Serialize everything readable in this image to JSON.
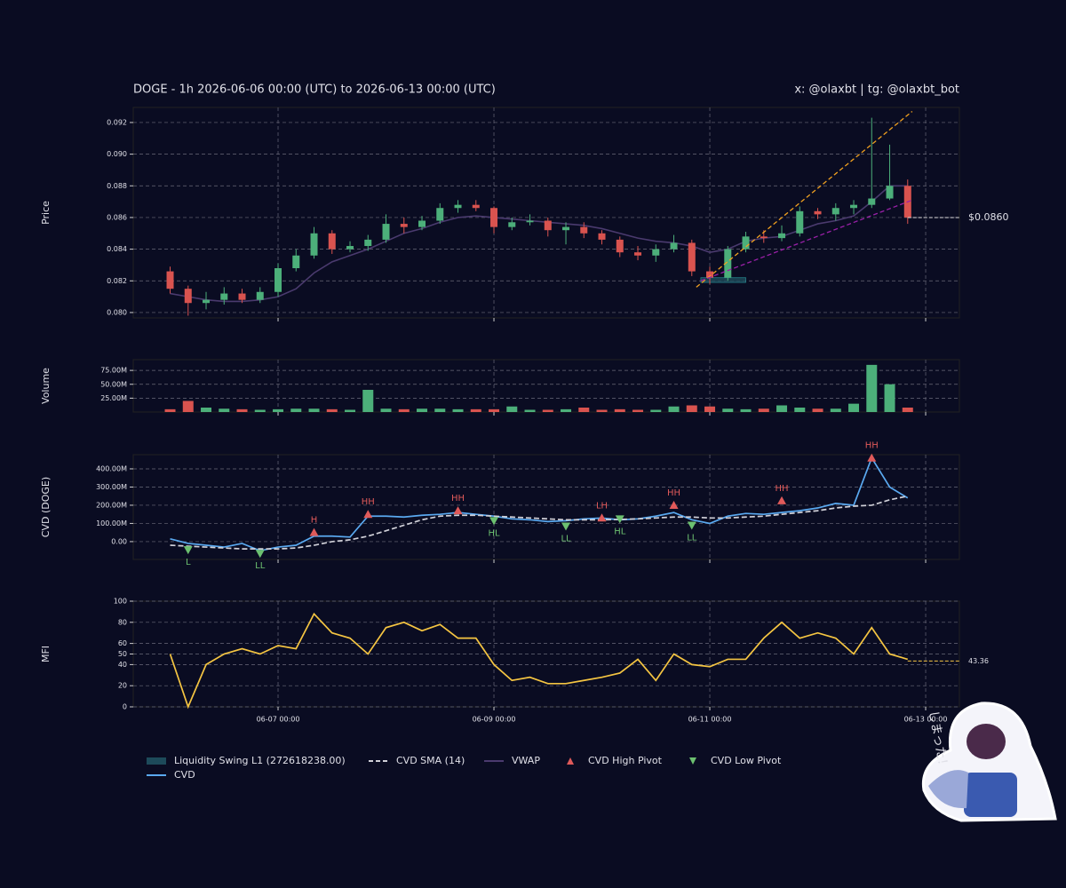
{
  "header": {
    "title": "DOGE - 1h 2026-06-06 00:00 (UTC) to 2026-06-13 00:00 (UTC)",
    "credit": "x: @olaxbt | tg: @olaxbt_bot",
    "sticker_text": "しまった！"
  },
  "chart_data": [
    {
      "type": "candlestick",
      "ylabel": "Price",
      "xlim": [
        "2026-06-05 15:48",
        "2026-06-13 07:30"
      ],
      "ylim": [
        0.07966,
        0.09295
      ],
      "yticks": [
        {
          "value": 0.08,
          "label": "0.080"
        },
        {
          "value": 0.082,
          "label": "0.082"
        },
        {
          "value": 0.084,
          "label": "0.084"
        },
        {
          "value": 0.086,
          "label": "0.086"
        },
        {
          "value": 0.088,
          "label": "0.088"
        },
        {
          "value": 0.09,
          "label": "0.090"
        },
        {
          "value": 0.092,
          "label": "0.092"
        }
      ],
      "up_color": "#4caf7a",
      "down_color": "#d9534f",
      "x": [
        "2026-06-06 00:00",
        "2026-06-06 04:00",
        "2026-06-06 08:00",
        "2026-06-06 12:00",
        "2026-06-06 16:00",
        "2026-06-06 20:00",
        "2026-06-07 00:00",
        "2026-06-07 04:00",
        "2026-06-07 08:00",
        "2026-06-07 12:00",
        "2026-06-07 16:00",
        "2026-06-07 20:00",
        "2026-06-08 00:00",
        "2026-06-08 04:00",
        "2026-06-08 08:00",
        "2026-06-08 12:00",
        "2026-06-08 16:00",
        "2026-06-08 20:00",
        "2026-06-09 00:00",
        "2026-06-09 04:00",
        "2026-06-09 08:00",
        "2026-06-09 12:00",
        "2026-06-09 16:00",
        "2026-06-09 20:00",
        "2026-06-10 00:00",
        "2026-06-10 04:00",
        "2026-06-10 08:00",
        "2026-06-10 12:00",
        "2026-06-10 16:00",
        "2026-06-10 20:00",
        "2026-06-11 00:00",
        "2026-06-11 04:00",
        "2026-06-11 08:00",
        "2026-06-11 12:00",
        "2026-06-11 16:00",
        "2026-06-11 20:00",
        "2026-06-12 00:00",
        "2026-06-12 04:00",
        "2026-06-12 08:00",
        "2026-06-12 12:00",
        "2026-06-12 16:00",
        "2026-06-12 20:00"
      ],
      "open": [
        0.0826,
        0.0815,
        0.0806,
        0.0808,
        0.0812,
        0.0808,
        0.0813,
        0.0828,
        0.0836,
        0.085,
        0.084,
        0.0842,
        0.0846,
        0.0856,
        0.0854,
        0.0858,
        0.0866,
        0.0868,
        0.0866,
        0.0854,
        0.0857,
        0.0858,
        0.0852,
        0.0854,
        0.085,
        0.0846,
        0.0838,
        0.0836,
        0.084,
        0.0844,
        0.0826,
        0.0822,
        0.084,
        0.0848,
        0.0847,
        0.085,
        0.0864,
        0.0862,
        0.0866,
        0.0868,
        0.0872,
        0.088
      ],
      "high": [
        0.0829,
        0.0817,
        0.0813,
        0.0816,
        0.0815,
        0.0816,
        0.0831,
        0.084,
        0.0854,
        0.0852,
        0.0845,
        0.0849,
        0.0862,
        0.086,
        0.0861,
        0.0869,
        0.0871,
        0.0871,
        0.0867,
        0.086,
        0.0862,
        0.086,
        0.0857,
        0.0857,
        0.0852,
        0.0848,
        0.0842,
        0.0843,
        0.0849,
        0.0846,
        0.0829,
        0.0842,
        0.0851,
        0.0852,
        0.0855,
        0.0867,
        0.0866,
        0.0869,
        0.0871,
        0.0923,
        0.0906,
        0.0884
      ],
      "low": [
        0.0812,
        0.0798,
        0.0802,
        0.0805,
        0.0806,
        0.0806,
        0.081,
        0.0826,
        0.0834,
        0.0837,
        0.0838,
        0.0839,
        0.0844,
        0.085,
        0.0852,
        0.0856,
        0.0863,
        0.0864,
        0.085,
        0.0852,
        0.0855,
        0.0848,
        0.0843,
        0.0847,
        0.0843,
        0.0835,
        0.0833,
        0.0832,
        0.0838,
        0.0823,
        0.0818,
        0.082,
        0.0838,
        0.0844,
        0.0845,
        0.0848,
        0.0859,
        0.0858,
        0.0862,
        0.0866,
        0.0871,
        0.0856
      ],
      "close": [
        0.0815,
        0.0806,
        0.0808,
        0.0812,
        0.0808,
        0.0813,
        0.0828,
        0.0836,
        0.085,
        0.084,
        0.0842,
        0.0846,
        0.0856,
        0.0854,
        0.0858,
        0.0866,
        0.0868,
        0.0866,
        0.0854,
        0.0857,
        0.0858,
        0.0852,
        0.0854,
        0.085,
        0.0846,
        0.0838,
        0.0836,
        0.084,
        0.0844,
        0.0826,
        0.0822,
        0.084,
        0.0848,
        0.0847,
        0.085,
        0.0864,
        0.0862,
        0.0866,
        0.0868,
        0.0872,
        0.088,
        0.086
      ],
      "series": [
        {
          "name": "VWAP",
          "color": "#4a3a6e",
          "values": [
            0.0812,
            0.081,
            0.0808,
            0.0807,
            0.0807,
            0.0808,
            0.081,
            0.0815,
            0.0825,
            0.0832,
            0.0836,
            0.084,
            0.0845,
            0.085,
            0.0853,
            0.0857,
            0.086,
            0.0861,
            0.086,
            0.0859,
            0.0858,
            0.0857,
            0.0856,
            0.0855,
            0.0853,
            0.085,
            0.0847,
            0.0845,
            0.0844,
            0.0842,
            0.0838,
            0.084,
            0.0845,
            0.0847,
            0.0848,
            0.0852,
            0.0856,
            0.0858,
            0.0861,
            0.087,
            0.088,
            0.088
          ]
        }
      ],
      "trend_lines": [
        {
          "color": "#f0a020",
          "x": [
            "2026-06-10 21:00",
            "2026-06-12 21:00"
          ],
          "values": [
            0.0816,
            0.0927
          ]
        },
        {
          "color": "#9a20a8",
          "x": [
            "2026-06-10 22:00",
            "2026-06-12 21:00"
          ],
          "values": [
            0.082,
            0.0871
          ]
        }
      ],
      "liquidity_zone": {
        "name": "Liquidity Swing L1 (272618238.00)",
        "color": "#1d4a5a",
        "x": [
          "2026-06-10 22:00",
          "2026-06-11 08:00"
        ],
        "values": [
          0.0819,
          0.0822
        ]
      },
      "last_value": 0.086,
      "last_value_label": "$0.0860"
    },
    {
      "type": "bar",
      "ylabel": "Volume",
      "xlim": [
        "2026-06-05 15:48",
        "2026-06-13 07:30"
      ],
      "ylim": [
        0,
        94400000
      ],
      "yticks": [
        {
          "value": 25000000,
          "label": "25.00M"
        },
        {
          "value": 50000000,
          "label": "50.00M"
        },
        {
          "value": 75000000,
          "label": "75.00M"
        }
      ],
      "values": [
        5000000,
        20000000,
        8000000,
        6000000,
        5000000,
        4000000,
        5000000,
        6000000,
        6000000,
        5000000,
        4000000,
        40000000,
        6000000,
        5000000,
        6000000,
        6000000,
        5000000,
        5000000,
        5000000,
        10000000,
        4000000,
        4000000,
        5000000,
        8000000,
        4000000,
        5000000,
        4000000,
        4000000,
        10000000,
        12000000,
        10000000,
        6000000,
        5000000,
        6000000,
        12000000,
        8000000,
        6000000,
        6000000,
        15000000,
        85000000,
        50000000,
        8000000
      ]
    },
    {
      "type": "line",
      "ylabel": "CVD (DOGE)",
      "xlim": [
        "2026-06-05 15:48",
        "2026-06-13 07:30"
      ],
      "ylim": [
        -98000000,
        478000000
      ],
      "yticks": [
        {
          "value": 0,
          "label": "0.00"
        },
        {
          "value": 100000000,
          "label": "100.00M"
        },
        {
          "value": 200000000,
          "label": "200.00M"
        },
        {
          "value": 300000000,
          "label": "300.00M"
        },
        {
          "value": 400000000,
          "label": "400.00M"
        }
      ],
      "series": [
        {
          "name": "CVD",
          "color": "#5aa9f0",
          "values": [
            15000000,
            -10000000,
            -20000000,
            -30000000,
            -10000000,
            -50000000,
            -30000000,
            -20000000,
            30000000,
            30000000,
            25000000,
            140000000,
            140000000,
            135000000,
            145000000,
            150000000,
            160000000,
            150000000,
            140000000,
            125000000,
            120000000,
            110000000,
            115000000,
            125000000,
            130000000,
            120000000,
            125000000,
            140000000,
            160000000,
            120000000,
            100000000,
            140000000,
            155000000,
            150000000,
            160000000,
            170000000,
            185000000,
            210000000,
            200000000,
            460000000,
            300000000,
            240000000
          ]
        },
        {
          "name": "CVD SMA (14)",
          "color": "#d0d0d8",
          "dash": true,
          "values": [
            -20000000,
            -25000000,
            -30000000,
            -35000000,
            -40000000,
            -40000000,
            -40000000,
            -35000000,
            -20000000,
            0,
            10000000,
            30000000,
            60000000,
            90000000,
            120000000,
            140000000,
            145000000,
            145000000,
            140000000,
            135000000,
            130000000,
            125000000,
            120000000,
            120000000,
            120000000,
            122000000,
            125000000,
            130000000,
            135000000,
            135000000,
            130000000,
            130000000,
            135000000,
            140000000,
            150000000,
            160000000,
            170000000,
            185000000,
            195000000,
            200000000,
            230000000,
            250000000
          ]
        }
      ],
      "high_pivots": {
        "name": "CVD High Pivot",
        "color": "#e05a5a",
        "x": [
          "2026-06-07 08:00",
          "2026-06-07 20:00",
          "2026-06-08 16:00",
          "2026-06-10 00:00",
          "2026-06-10 16:00",
          "2026-06-11 16:00",
          "2026-06-12 12:00"
        ],
        "values": [
          50000000,
          150000000,
          170000000,
          130000000,
          200000000,
          225000000,
          460000000
        ],
        "labels": [
          "H",
          "HH",
          "HH",
          "LH",
          "HH",
          "HH",
          "HH"
        ]
      },
      "low_pivots": {
        "name": "CVD Low Pivot",
        "color": "#6cc070",
        "x": [
          "2026-06-06 04:00",
          "2026-06-06 20:00",
          "2026-06-09 00:00",
          "2026-06-09 16:00",
          "2026-06-10 04:00",
          "2026-06-10 20:00"
        ],
        "values": [
          -45000000,
          -65000000,
          115000000,
          85000000,
          125000000,
          90000000
        ],
        "labels": [
          "L",
          "LL",
          "HL",
          "LL",
          "HL",
          "LL"
        ]
      }
    },
    {
      "type": "line",
      "ylabel": "MFI",
      "xlim": [
        "2026-06-05 15:48",
        "2026-06-13 07:30"
      ],
      "ylim": [
        0,
        100
      ],
      "yticks": [
        0,
        20,
        40,
        50,
        60,
        80,
        100
      ],
      "xticks": [
        {
          "value": "2026-06-07 00:00",
          "label": "06-07 00:00"
        },
        {
          "value": "2026-06-09 00:00",
          "label": "06-09 00:00"
        },
        {
          "value": "2026-06-11 00:00",
          "label": "06-11 00:00"
        },
        {
          "value": "2026-06-13 00:00",
          "label": "06-13 00:00"
        }
      ],
      "series": [
        {
          "color": "#f5c542",
          "values": [
            50,
            0,
            40,
            50,
            55,
            50,
            58,
            55,
            88,
            70,
            65,
            50,
            75,
            80,
            72,
            78,
            65,
            65,
            40,
            25,
            28,
            22,
            22,
            25,
            28,
            32,
            45,
            25,
            50,
            40,
            38,
            45,
            45,
            65,
            80,
            65,
            70,
            65,
            50,
            75,
            50,
            45
          ]
        }
      ],
      "last_value": 43.36
    }
  ]
}
